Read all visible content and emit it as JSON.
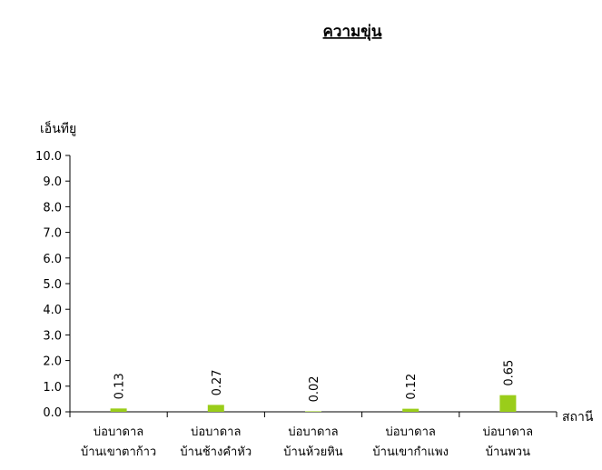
{
  "chart_data": {
    "type": "bar",
    "title": "ความขุ่น",
    "ylabel": "เอ็นทียู",
    "xlabel": "สถานี",
    "ylim": [
      0,
      10
    ],
    "yticks": [
      "0.0",
      "1.0",
      "2.0",
      "3.0",
      "4.0",
      "5.0",
      "6.0",
      "7.0",
      "8.0",
      "9.0",
      "10.0"
    ],
    "categories": [
      [
        "บ่อบาดาล",
        "บ้านเขาตาก้าว"
      ],
      [
        "บ่อบาดาล",
        "บ้านช้างคำหัว"
      ],
      [
        "บ่อบาดาล",
        "บ้านห้วยหิน"
      ],
      [
        "บ่อบาดาล",
        "บ้านเขากำแพง"
      ],
      [
        "บ่อบาดาล",
        "บ้านพวน"
      ]
    ],
    "values": [
      0.13,
      0.27,
      0.02,
      0.12,
      0.65
    ],
    "value_labels": [
      "0.13",
      "0.27",
      "0.02",
      "0.12",
      "0.65"
    ],
    "bar_color": "#9acd1a",
    "grid": false,
    "legend": "none"
  }
}
